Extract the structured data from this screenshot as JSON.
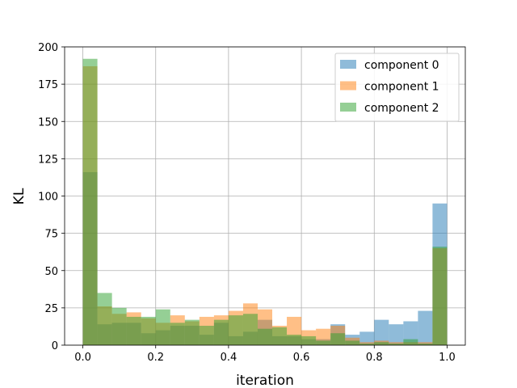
{
  "chart_data": {
    "type": "bar",
    "subtype": "overlaid-histogram",
    "title": "",
    "xlabel": "iteration",
    "ylabel": "KL",
    "xlim": [
      -0.05,
      1.05
    ],
    "ylim": [
      0,
      200
    ],
    "xticks": [
      0.0,
      0.2,
      0.4,
      0.6,
      0.8,
      1.0
    ],
    "xtick_labels": [
      "0.0",
      "0.2",
      "0.4",
      "0.6",
      "0.8",
      "1.0"
    ],
    "yticks": [
      0,
      25,
      50,
      75,
      100,
      125,
      150,
      175,
      200
    ],
    "ytick_labels": [
      "0",
      "25",
      "50",
      "75",
      "100",
      "125",
      "150",
      "175",
      "200"
    ],
    "grid": true,
    "legend_position": "top-right",
    "bin_width": 0.04,
    "bin_starts": [
      0.0,
      0.04,
      0.08,
      0.12,
      0.16,
      0.2,
      0.24,
      0.28,
      0.32,
      0.36,
      0.4,
      0.44,
      0.48,
      0.52,
      0.56,
      0.6,
      0.64,
      0.68,
      0.72,
      0.76,
      0.8,
      0.84,
      0.88,
      0.92,
      0.96
    ],
    "series": [
      {
        "name": "component 0",
        "color": "#1f77b4",
        "values": [
          116,
          14,
          15,
          15,
          8,
          10,
          13,
          13,
          7,
          15,
          6,
          9,
          17,
          6,
          6,
          4,
          4,
          14,
          7,
          9,
          17,
          14,
          16,
          23,
          95
        ]
      },
      {
        "name": "component 1",
        "color": "#ff7f0e",
        "values": [
          187,
          26,
          21,
          22,
          18,
          15,
          20,
          16,
          19,
          20,
          23,
          28,
          24,
          13,
          19,
          10,
          11,
          13,
          5,
          2,
          3,
          2,
          2,
          2,
          65
        ]
      },
      {
        "name": "component 2",
        "color": "#2ca02c",
        "values": [
          192,
          35,
          25,
          19,
          19,
          24,
          15,
          17,
          13,
          17,
          20,
          21,
          11,
          12,
          7,
          6,
          3,
          8,
          3,
          1,
          2,
          1,
          4,
          1,
          66
        ]
      }
    ]
  }
}
